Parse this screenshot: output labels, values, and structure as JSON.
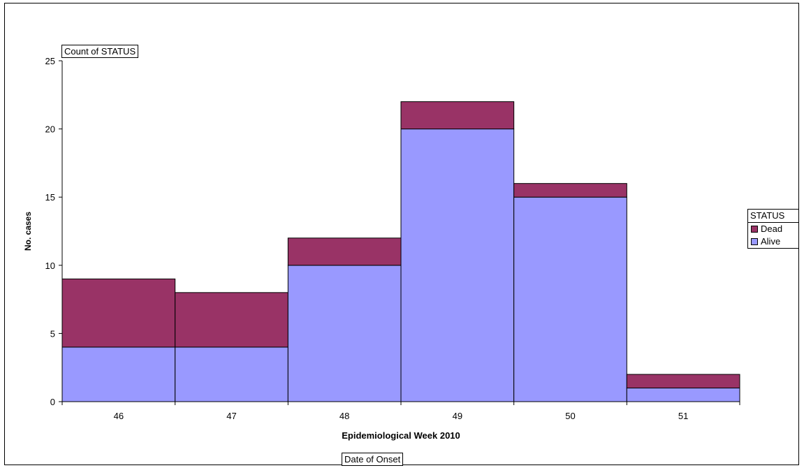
{
  "chart_data": {
    "type": "bar",
    "stacked": true,
    "categories": [
      "46",
      "47",
      "48",
      "49",
      "50",
      "51"
    ],
    "series": [
      {
        "name": "Alive",
        "values": [
          4,
          4,
          10,
          20,
          15,
          1
        ],
        "color": "#9999ff"
      },
      {
        "name": "Dead",
        "values": [
          5,
          4,
          2,
          2,
          1,
          1
        ],
        "color": "#993366"
      }
    ],
    "xlabel": "Epidemiological Week 2010",
    "ylabel": "No. cases",
    "ylim": [
      0,
      25
    ],
    "yticks": [
      0,
      5,
      10,
      15,
      20,
      25
    ],
    "grid": false,
    "legend_position": "right"
  },
  "pivot": {
    "data_field": "Count of STATUS",
    "row_field": "Date of Onset",
    "legend_title": "STATUS",
    "legend_entries": [
      {
        "label": "Dead",
        "color": "#993366"
      },
      {
        "label": "Alive",
        "color": "#9999ff"
      }
    ]
  }
}
